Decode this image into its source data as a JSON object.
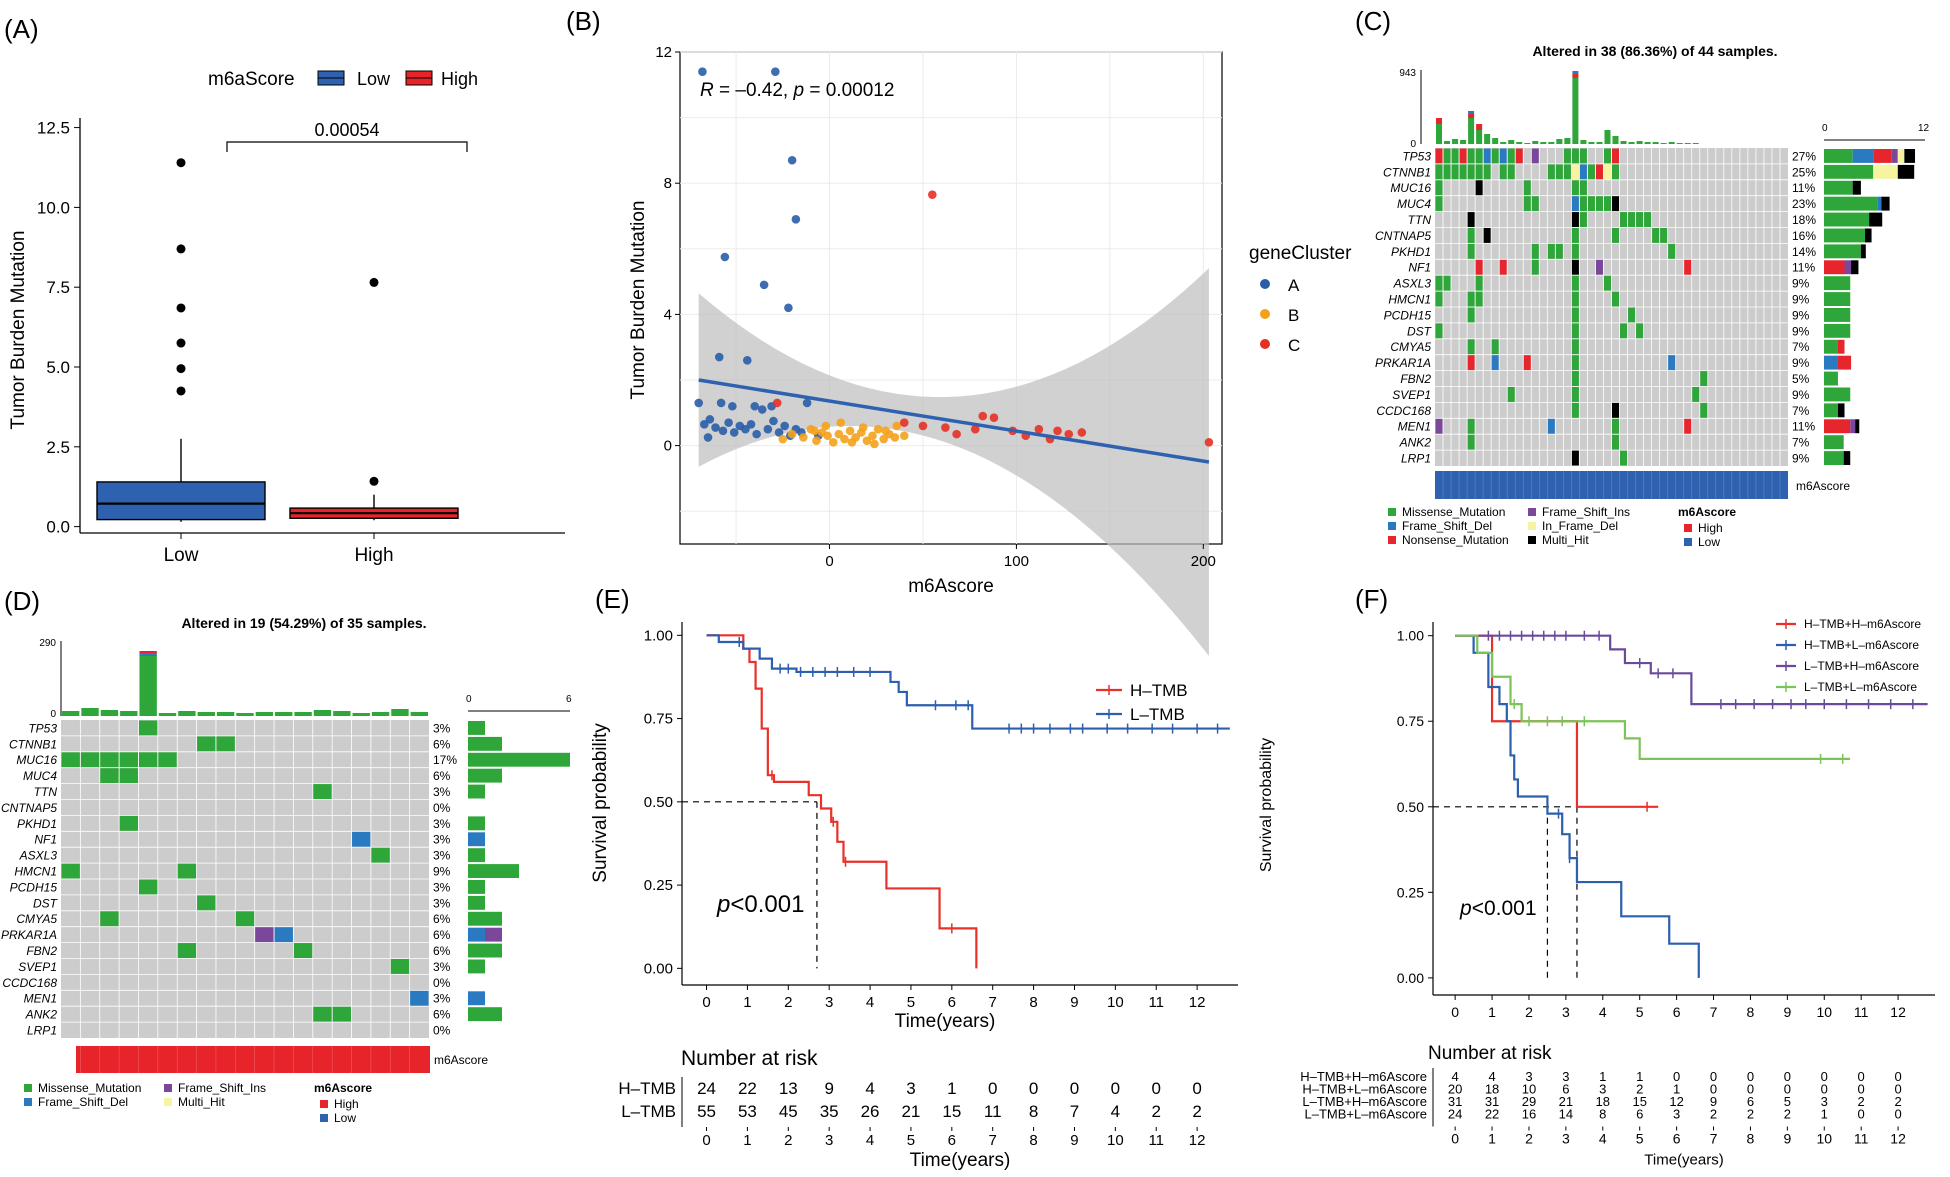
{
  "figure": {
    "colors": {
      "low": "#2e62b0",
      "high": "#e8242b",
      "cluster_a": "#2a5da8",
      "cluster_b": "#f4a11c",
      "cluster_c": "#e53024",
      "missense": "#2ea639",
      "frame_del": "#2a7ac2",
      "nonsense": "#e7252c",
      "frame_ins": "#7b479b",
      "inframe_del": "#f6f3a1",
      "multi": "#000000",
      "cell_bg": "#cccccc",
      "km_h": "#e9312a",
      "km_l": "#2c5fae",
      "km_c3": "#6b4a9b",
      "km_c4": "#7cc35a"
    }
  },
  "panel_a": {
    "label": "(A)",
    "legend_title": "m6aScore",
    "legend_items": [
      "Low",
      "High"
    ],
    "chart_data": {
      "type": "boxplot",
      "ylabel": "Tumor Burden Mutation",
      "ylim": [
        -0.2,
        12.8
      ],
      "yticks": [
        "0.0",
        "2.5",
        "5.0",
        "7.5",
        "10.0",
        "12.5"
      ],
      "ytick_values": [
        0,
        2.5,
        5,
        7.5,
        10,
        12.5
      ],
      "categories": [
        "Low",
        "High"
      ],
      "boxes": [
        {
          "name": "Low",
          "min": 0.15,
          "q1": 0.22,
          "median": 0.72,
          "q3": 1.4,
          "max": 2.75,
          "outliers": [
            11.4,
            8.7,
            6.85,
            5.75,
            4.95,
            4.25
          ]
        },
        {
          "name": "High",
          "min": 0.2,
          "q1": 0.26,
          "median": 0.42,
          "q3": 0.58,
          "max": 1.0,
          "outliers": [
            7.65,
            1.42
          ]
        }
      ],
      "pvalue": "0.00054"
    }
  },
  "panel_b": {
    "label": "(B)",
    "annotation": {
      "r": "R",
      "mid": " = –0.42, ",
      "p": "p",
      "end": " = 0.00012"
    },
    "legend_title": "geneCluster",
    "legend_items": [
      "A",
      "B",
      "C"
    ],
    "chart_data": {
      "type": "scatter",
      "xlabel": "m6Ascore",
      "ylabel": "Tumor Burden Mutation",
      "xlim": [
        -80,
        210
      ],
      "ylim": [
        -3,
        12
      ],
      "xticks": [
        "0",
        "100",
        "200"
      ],
      "xtick_values": [
        0,
        100,
        200
      ],
      "yticks": [
        "0",
        "4",
        "8",
        "12"
      ],
      "ytick_values": [
        0,
        4,
        8,
        12
      ],
      "fit": {
        "x1": -70,
        "y1": 2.0,
        "x2": 203,
        "y2": -0.5
      },
      "series": [
        {
          "name": "A",
          "points": [
            [
              -68,
              11.4
            ],
            [
              -29,
              11.4
            ],
            [
              -20,
              8.7
            ],
            [
              -18,
              6.9
            ],
            [
              -56,
              5.75
            ],
            [
              -35,
              4.9
            ],
            [
              -22,
              4.2
            ],
            [
              -59,
              2.7
            ],
            [
              -44,
              2.6
            ],
            [
              -70,
              1.3
            ],
            [
              -67,
              0.65
            ],
            [
              -64,
              0.8
            ],
            [
              -61,
              0.55
            ],
            [
              -57,
              0.45
            ],
            [
              -54,
              0.7
            ],
            [
              -51,
              0.4
            ],
            [
              -48,
              0.6
            ],
            [
              -45,
              0.5
            ],
            [
              -42,
              0.65
            ],
            [
              -39,
              0.35
            ],
            [
              -36,
              1.1
            ],
            [
              -33,
              0.5
            ],
            [
              -30,
              0.75
            ],
            [
              -27,
              0.4
            ],
            [
              -24,
              0.6
            ],
            [
              -21,
              0.3
            ],
            [
              -18,
              0.5
            ],
            [
              -15,
              0.4
            ],
            [
              -52,
              1.2
            ],
            [
              -40,
              1.2
            ],
            [
              -31,
              1.2
            ],
            [
              -12,
              1.3
            ],
            [
              -6,
              0.3
            ],
            [
              -65,
              0.25
            ],
            [
              -58,
              1.3
            ]
          ]
        },
        {
          "name": "B",
          "points": [
            [
              -25,
              0.2
            ],
            [
              -20,
              0.35
            ],
            [
              -14,
              0.25
            ],
            [
              -10,
              0.5
            ],
            [
              -7,
              0.15
            ],
            [
              -4,
              0.4
            ],
            [
              -1,
              0.3
            ],
            [
              2,
              0.1
            ],
            [
              5,
              0.35
            ],
            [
              8,
              0.2
            ],
            [
              11,
              0.45
            ],
            [
              14,
              0.25
            ],
            [
              17,
              0.4
            ],
            [
              20,
              0.15
            ],
            [
              23,
              0.3
            ],
            [
              26,
              0.5
            ],
            [
              29,
              0.2
            ],
            [
              32,
              0.35
            ],
            [
              35,
              0.25
            ],
            [
              -2,
              0.6
            ],
            [
              6,
              0.7
            ],
            [
              12,
              0.1
            ],
            [
              18,
              0.55
            ],
            [
              24,
              0.05
            ],
            [
              30,
              0.45
            ],
            [
              36,
              0.6
            ],
            [
              40,
              0.3
            ],
            [
              -8,
              0.45
            ]
          ]
        },
        {
          "name": "C",
          "points": [
            [
              55,
              7.65
            ],
            [
              -28,
              1.3
            ],
            [
              40,
              0.7
            ],
            [
              50,
              0.6
            ],
            [
              62,
              0.55
            ],
            [
              68,
              0.35
            ],
            [
              78,
              0.5
            ],
            [
              82,
              0.9
            ],
            [
              88,
              0.85
            ],
            [
              98,
              0.45
            ],
            [
              105,
              0.3
            ],
            [
              112,
              0.5
            ],
            [
              118,
              0.2
            ],
            [
              122,
              0.45
            ],
            [
              128,
              0.35
            ],
            [
              135,
              0.4
            ],
            [
              203,
              0.1
            ]
          ]
        }
      ]
    }
  },
  "panel_c": {
    "label": "(C)",
    "title": "Altered in 38 (86.36%) of 44 samples.",
    "bar_max": "943",
    "bar_min": "0",
    "right_axis": [
      "0",
      "12"
    ],
    "score_label": "m6Ascore",
    "genes": [
      "TP53",
      "CTNNB1",
      "MUC16",
      "MUC4",
      "TTN",
      "CNTNAP5",
      "PKHD1",
      "NF1",
      "ASXL3",
      "HMCN1",
      "PCDH15",
      "DST",
      "CMYA5",
      "PRKAR1A",
      "FBN2",
      "SVEP1",
      "CCDC168",
      "MEN1",
      "ANK2",
      "LRP1"
    ],
    "percents": [
      "27%",
      "25%",
      "11%",
      "23%",
      "18%",
      "16%",
      "14%",
      "11%",
      "9%",
      "9%",
      "9%",
      "9%",
      "7%",
      "9%",
      "5%",
      "9%",
      "7%",
      "11%",
      "7%",
      "9%"
    ],
    "legend_col1": [
      "Missense_Mutation",
      "Frame_Shift_Del",
      "Nonsense_Mutation"
    ],
    "legend_col2": [
      "Frame_Shift_Ins",
      "In_Frame_Del",
      "Multi_Hit"
    ],
    "legend_title": "m6Ascore",
    "legend_score": [
      "High",
      "Low"
    ]
  },
  "panel_d": {
    "label": "(D)",
    "title": "Altered in 19 (54.29%) of 35 samples.",
    "bar_max": "290",
    "bar_min": "0",
    "right_axis": [
      "0",
      "6"
    ],
    "score_label": "m6Ascore",
    "genes": [
      "TP53",
      "CTNNB1",
      "MUC16",
      "MUC4",
      "TTN",
      "CNTNAP5",
      "PKHD1",
      "NF1",
      "ASXL3",
      "HMCN1",
      "PCDH15",
      "DST",
      "CMYA5",
      "PRKAR1A",
      "FBN2",
      "SVEP1",
      "CCDC168",
      "MEN1",
      "ANK2",
      "LRP1"
    ],
    "percents": [
      "3%",
      "6%",
      "17%",
      "6%",
      "3%",
      "0%",
      "3%",
      "3%",
      "3%",
      "9%",
      "3%",
      "3%",
      "6%",
      "6%",
      "6%",
      "3%",
      "0%",
      "3%",
      "6%",
      "0%"
    ],
    "legend_col1": [
      "Missense_Mutation",
      "Frame_Shift_Del"
    ],
    "legend_col2": [
      "Frame_Shift_Ins",
      "Multi_Hit"
    ],
    "legend_title": "m6Ascore",
    "legend_score": [
      "High",
      "Low"
    ]
  },
  "panel_e": {
    "label": "(E)",
    "pval": {
      "p": "p",
      "rest": "<0.001"
    },
    "legend_items": [
      "H–TMB",
      "L–TMB"
    ],
    "risk_title": "Number at risk",
    "risk_rows": [
      {
        "name": "H–TMB",
        "values": [
          "24",
          "22",
          "13",
          "9",
          "4",
          "3",
          "1",
          "0",
          "0",
          "0",
          "0",
          "0",
          "0"
        ]
      },
      {
        "name": "L–TMB",
        "values": [
          "55",
          "53",
          "45",
          "35",
          "26",
          "21",
          "15",
          "11",
          "8",
          "7",
          "4",
          "2",
          "2"
        ]
      }
    ],
    "chart_data": {
      "type": "line",
      "xlabel": "Time(years)",
      "ylabel": "Survival probability",
      "xlim": [
        -0.6,
        13.0
      ],
      "ylim": [
        -0.05,
        1.04
      ],
      "xticks": [
        "0",
        "1",
        "2",
        "3",
        "4",
        "5",
        "6",
        "7",
        "8",
        "9",
        "10",
        "11",
        "12"
      ],
      "yticks": [
        "0.00",
        "0.25",
        "0.50",
        "0.75",
        "1.00"
      ],
      "ytick_values": [
        0,
        0.25,
        0.5,
        0.75,
        1.0
      ],
      "median_time": 2.7,
      "series": [
        {
          "name": "H–TMB",
          "steps": [
            [
              0,
              1.0
            ],
            [
              0.9,
              0.96
            ],
            [
              1.05,
              0.92
            ],
            [
              1.2,
              0.84
            ],
            [
              1.35,
              0.72
            ],
            [
              1.5,
              0.58
            ],
            [
              1.65,
              0.56
            ],
            [
              2.5,
              0.52
            ],
            [
              2.8,
              0.48
            ],
            [
              3.05,
              0.44
            ],
            [
              3.2,
              0.38
            ],
            [
              3.35,
              0.32
            ],
            [
              4.4,
              0.24
            ],
            [
              5.7,
              0.12
            ],
            [
              6.6,
              0.0
            ]
          ],
          "end": 6.6
        },
        {
          "name": "L–TMB",
          "steps": [
            [
              0,
              1.0
            ],
            [
              0.3,
              0.98
            ],
            [
              0.9,
              0.96
            ],
            [
              1.3,
              0.93
            ],
            [
              1.6,
              0.9
            ],
            [
              2.2,
              0.89
            ],
            [
              4.5,
              0.86
            ],
            [
              4.7,
              0.83
            ],
            [
              4.9,
              0.79
            ],
            [
              6.5,
              0.72
            ]
          ],
          "end": 12.8
        }
      ]
    }
  },
  "panel_f": {
    "label": "(F)",
    "pval": {
      "p": "p",
      "rest": "<0.001"
    },
    "legend_items": [
      "H–TMB+H–m6Ascore",
      "H–TMB+L–m6Ascore",
      "L–TMB+H–m6Ascore",
      "L–TMB+L–m6Ascore"
    ],
    "risk_title": "Number at risk",
    "risk_rows": [
      {
        "name": "H–TMB+H–m6Ascore",
        "values": [
          "4",
          "4",
          "3",
          "3",
          "1",
          "1",
          "0",
          "0",
          "0",
          "0",
          "0",
          "0",
          "0"
        ]
      },
      {
        "name": "H–TMB+L–m6Ascore",
        "values": [
          "20",
          "18",
          "10",
          "6",
          "3",
          "2",
          "1",
          "0",
          "0",
          "0",
          "0",
          "0",
          "0"
        ]
      },
      {
        "name": "L–TMB+H–m6Ascore",
        "values": [
          "31",
          "31",
          "29",
          "21",
          "18",
          "15",
          "12",
          "9",
          "6",
          "5",
          "3",
          "2",
          "2"
        ]
      },
      {
        "name": "L–TMB+L–m6Ascore",
        "values": [
          "24",
          "22",
          "16",
          "14",
          "8",
          "6",
          "3",
          "2",
          "2",
          "2",
          "1",
          "0",
          "0"
        ]
      }
    ],
    "chart_data": {
      "type": "line",
      "xlabel": "Time(years)",
      "ylabel": "Survival probability",
      "xlim": [
        -0.6,
        13.0
      ],
      "ylim": [
        -0.05,
        1.04
      ],
      "xticks": [
        "0",
        "1",
        "2",
        "3",
        "4",
        "5",
        "6",
        "7",
        "8",
        "9",
        "10",
        "11",
        "12"
      ],
      "yticks": [
        "0.00",
        "0.25",
        "0.50",
        "0.75",
        "1.00"
      ],
      "ytick_values": [
        0,
        0.25,
        0.5,
        0.75,
        1.0
      ],
      "median_times": [
        2.5,
        3.3
      ],
      "series": [
        {
          "name": "H–TMB+H–m6Ascore",
          "steps": [
            [
              0,
              1.0
            ],
            [
              1.0,
              0.75
            ],
            [
              3.3,
              0.5
            ]
          ],
          "end": 5.5
        },
        {
          "name": "H–TMB+L–m6Ascore",
          "steps": [
            [
              0,
              1.0
            ],
            [
              0.5,
              0.95
            ],
            [
              0.9,
              0.85
            ],
            [
              1.2,
              0.8
            ],
            [
              1.4,
              0.75
            ],
            [
              1.5,
              0.65
            ],
            [
              1.6,
              0.58
            ],
            [
              1.7,
              0.53
            ],
            [
              2.5,
              0.48
            ],
            [
              2.9,
              0.42
            ],
            [
              3.1,
              0.35
            ],
            [
              3.3,
              0.28
            ],
            [
              4.5,
              0.18
            ],
            [
              5.8,
              0.1
            ],
            [
              6.6,
              0.0
            ]
          ],
          "end": 6.6
        },
        {
          "name": "L–TMB+H–m6Ascore",
          "steps": [
            [
              0,
              1.0
            ],
            [
              4.2,
              0.96
            ],
            [
              4.6,
              0.92
            ],
            [
              5.3,
              0.89
            ],
            [
              6.4,
              0.8
            ]
          ],
          "end": 12.8
        },
        {
          "name": "L–TMB+L–m6Ascore",
          "steps": [
            [
              0,
              1.0
            ],
            [
              0.6,
              0.95
            ],
            [
              1.0,
              0.88
            ],
            [
              1.5,
              0.8
            ],
            [
              1.8,
              0.75
            ],
            [
              4.6,
              0.7
            ],
            [
              5.0,
              0.64
            ]
          ],
          "end": 10.7
        }
      ]
    }
  }
}
